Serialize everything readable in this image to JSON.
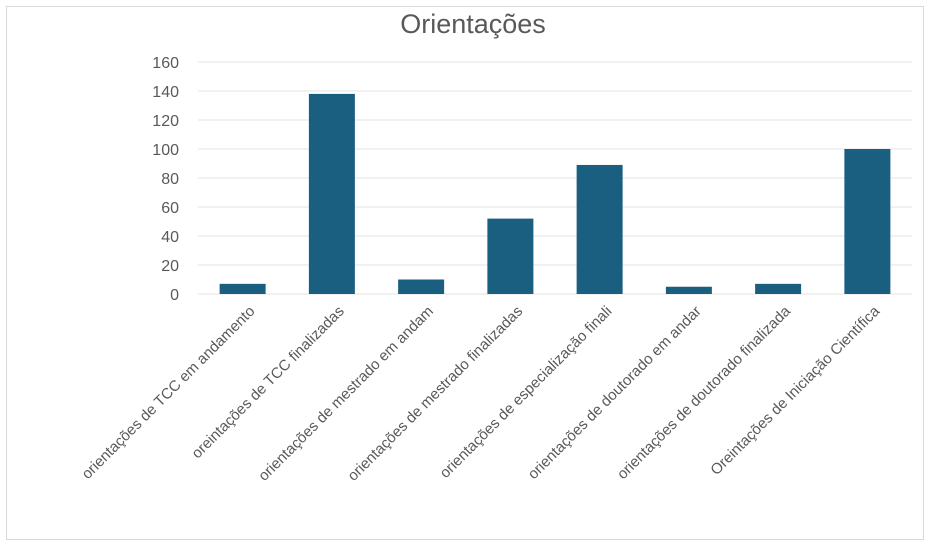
{
  "chart_data": {
    "type": "bar",
    "title": "Orientações",
    "categories": [
      "orientações de TCC em andamento",
      "oreintações de TCC finalizadas",
      "orientações de mestrado em andam",
      "orientações de mestrado finalizadas",
      "orientações de especialização finali",
      "orientações de doutorado em andar",
      "orientações de doutorado finalizada",
      "Oreintações de Iniciação Científica"
    ],
    "values": [
      7,
      138,
      10,
      52,
      89,
      5,
      7,
      100
    ],
    "ylim": [
      0,
      160
    ],
    "yticks": [
      0,
      20,
      40,
      60,
      80,
      100,
      120,
      140,
      160
    ],
    "xlabel": "",
    "ylabel": "",
    "grid": true,
    "legend": "none",
    "bar_color": "#1b5f80"
  }
}
